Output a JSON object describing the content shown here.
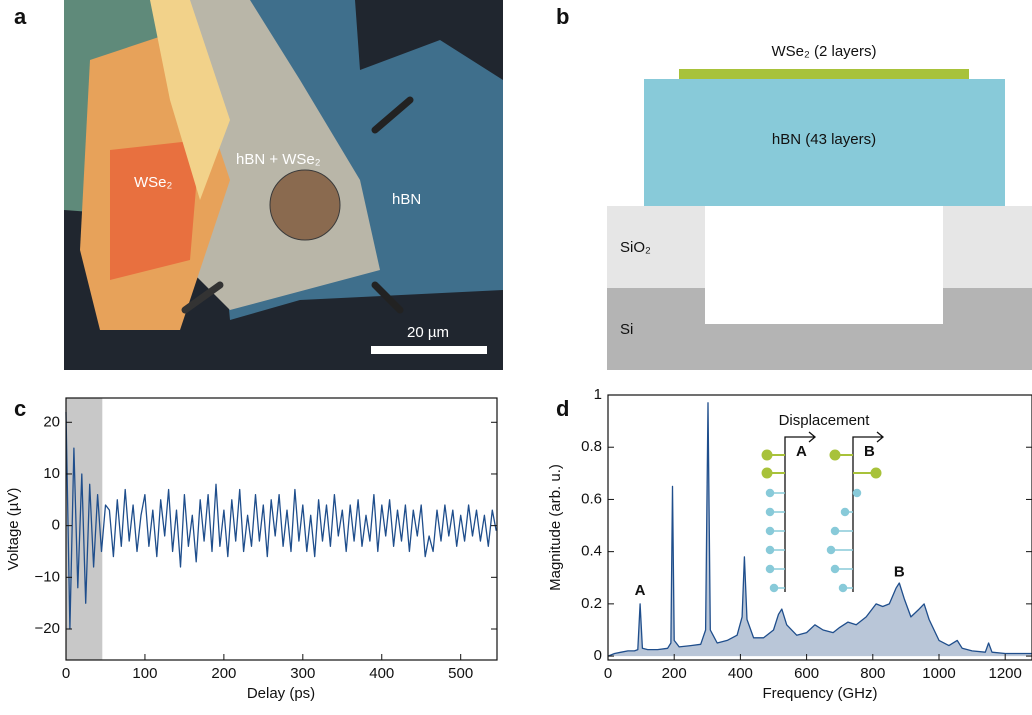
{
  "panel_labels": [
    "a",
    "b",
    "c",
    "d"
  ],
  "micrograph": {
    "labels": [
      "WSe₂",
      "hBN + WSe₂",
      "hBN"
    ],
    "scale_bar": "20 µm"
  },
  "schematic": {
    "layers": [
      "WSe₂ (2 layers)",
      "hBN (43 layers)",
      "SiO₂",
      "Si"
    ]
  },
  "chart_data": [
    {
      "type": "line",
      "xlabel": "Delay (ps)",
      "ylabel": "Voltage (µV)",
      "xlim": [
        0,
        546
      ],
      "ylim": [
        -26,
        24.7
      ],
      "xticks": [
        0,
        100,
        200,
        300,
        400,
        500
      ],
      "yticks": [
        {
          "value": -20,
          "label": "−20"
        },
        {
          "value": -10,
          "label": "−10"
        },
        0,
        10,
        20
      ],
      "shade": [
        0,
        46
      ],
      "x": [
        0,
        5,
        10,
        15,
        20,
        25,
        30,
        35,
        40,
        45,
        50,
        55,
        60,
        65,
        70,
        75,
        80,
        85,
        90,
        95,
        100,
        105,
        110,
        115,
        120,
        125,
        130,
        135,
        140,
        145,
        150,
        155,
        160,
        165,
        170,
        175,
        180,
        185,
        190,
        195,
        200,
        205,
        210,
        215,
        220,
        225,
        230,
        235,
        240,
        245,
        250,
        255,
        260,
        265,
        270,
        275,
        280,
        285,
        290,
        295,
        300,
        305,
        310,
        315,
        320,
        325,
        330,
        335,
        340,
        345,
        350,
        355,
        360,
        365,
        370,
        375,
        380,
        385,
        390,
        395,
        400,
        405,
        410,
        415,
        420,
        425,
        430,
        435,
        440,
        445,
        450,
        455,
        460,
        465,
        470,
        475,
        480,
        485,
        490,
        495,
        500,
        505,
        510,
        515,
        520,
        525,
        530,
        535,
        540,
        545
      ],
      "series": [
        {
          "color": "#1f4e8c",
          "values": [
            22,
            -20,
            15,
            -12,
            10,
            -15,
            8,
            -8,
            6,
            -5,
            4,
            3,
            -6,
            5,
            -4,
            7,
            -3,
            4,
            -5,
            2,
            6,
            -4,
            3,
            -6,
            5,
            -2,
            7,
            -5,
            3,
            -8,
            6,
            -4,
            2,
            -7,
            5,
            -3,
            6,
            -5,
            8,
            -4,
            3,
            -6,
            5,
            -3,
            7,
            -5,
            2,
            -4,
            6,
            -3,
            4,
            -6,
            5,
            -2,
            6,
            -4,
            3,
            -5,
            7,
            -3,
            4,
            -5,
            2,
            -6,
            5,
            -3,
            4,
            -4,
            6,
            -2,
            3,
            -5,
            4,
            -3,
            5,
            -4,
            2,
            -3,
            6,
            -5,
            4,
            -2,
            5,
            -4,
            3,
            -3,
            4,
            -5,
            3,
            -2,
            4,
            -6,
            -2,
            -5,
            3,
            -3,
            4,
            -2,
            3,
            -4,
            2,
            -3,
            4,
            -2,
            3,
            -3,
            2,
            -4,
            3,
            -1
          ]
        }
      ]
    },
    {
      "type": "area",
      "xlabel": "Frequency (GHz)",
      "ylabel": "Magnitude (arb. u.)",
      "xlim": [
        0,
        1281
      ],
      "ylim": [
        -0.015,
        1
      ],
      "xticks": [
        0,
        200,
        400,
        600,
        800,
        1000,
        1200
      ],
      "yticks": [
        0,
        0.2,
        0.4,
        0.6,
        0.8,
        1
      ],
      "peak_labels": [
        "A",
        "B"
      ],
      "inset": {
        "title": "Displacement",
        "modes": [
          "A",
          "B"
        ]
      },
      "x": [
        0,
        20,
        40,
        60,
        80,
        90,
        97,
        104,
        120,
        150,
        180,
        190,
        195,
        200,
        215,
        250,
        280,
        295,
        302,
        309,
        330,
        360,
        390,
        405,
        412,
        420,
        440,
        470,
        500,
        515,
        525,
        540,
        570,
        600,
        625,
        650,
        680,
        700,
        725,
        750,
        780,
        810,
        830,
        850,
        870,
        880,
        895,
        915,
        940,
        955,
        970,
        1000,
        1030,
        1055,
        1070,
        1100,
        1140,
        1150,
        1160,
        1200,
        1240,
        1281
      ],
      "series": [
        {
          "color": "#1f4e8c",
          "fill": "#b9c6d8",
          "values": [
            0.0,
            0.01,
            0.015,
            0.02,
            0.02,
            0.025,
            0.2,
            0.03,
            0.025,
            0.025,
            0.03,
            0.05,
            0.65,
            0.06,
            0.035,
            0.04,
            0.045,
            0.1,
            0.97,
            0.1,
            0.05,
            0.06,
            0.08,
            0.15,
            0.38,
            0.14,
            0.07,
            0.07,
            0.1,
            0.16,
            0.18,
            0.12,
            0.08,
            0.09,
            0.12,
            0.1,
            0.09,
            0.11,
            0.13,
            0.12,
            0.15,
            0.2,
            0.19,
            0.2,
            0.26,
            0.28,
            0.22,
            0.15,
            0.18,
            0.2,
            0.14,
            0.06,
            0.04,
            0.06,
            0.03,
            0.02,
            0.015,
            0.05,
            0.015,
            0.01,
            0.01,
            0.01
          ]
        }
      ]
    }
  ]
}
